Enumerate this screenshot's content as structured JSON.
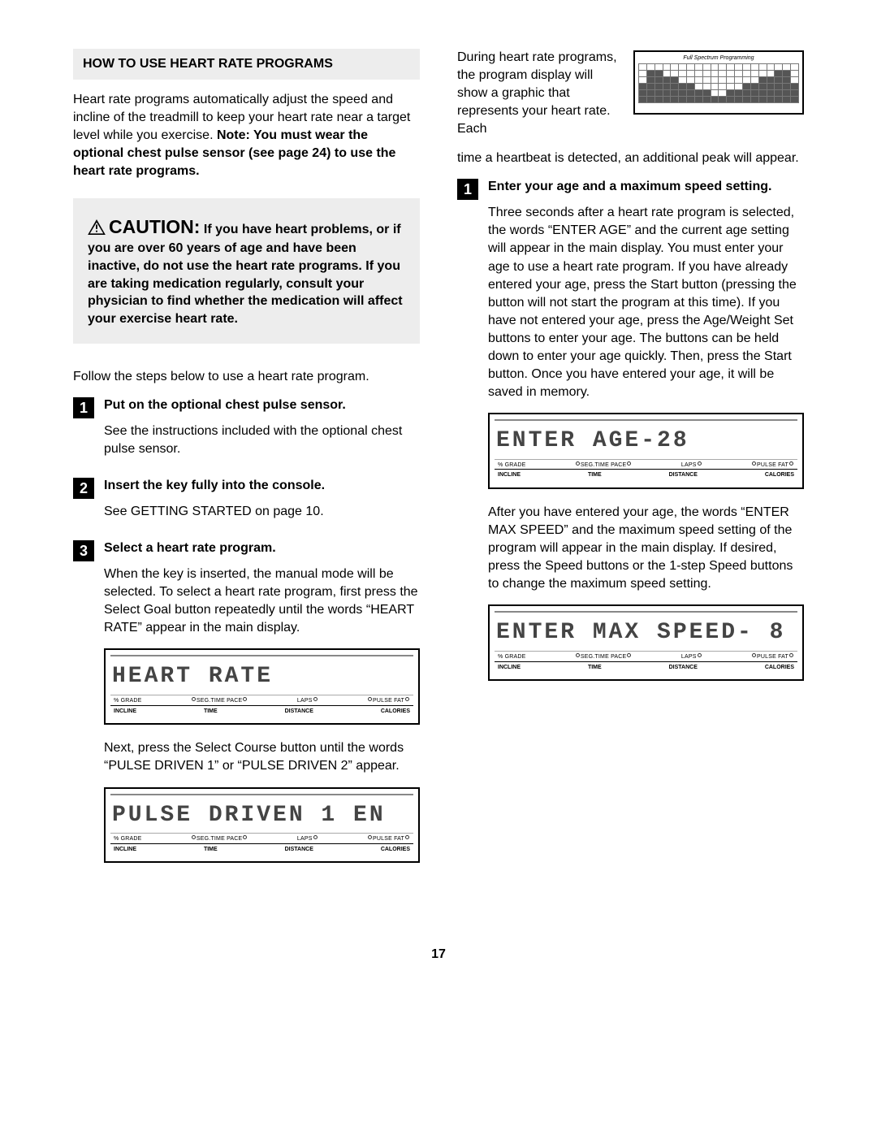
{
  "title": "HOW TO USE HEART RATE PROGRAMS",
  "intro": "Heart rate programs automatically adjust the speed and incline of the treadmill to keep your heart rate near a target level while you exercise. ",
  "intro_bold": "Note: You must wear the optional chest pulse sensor (see page 24) to use the heart rate programs.",
  "caution_label": "CAUTION:",
  "caution_body": " If you have heart problems, or if you are over 60 years of age and have been inactive, do not use the heart rate programs. If you are taking medication regularly, consult your physician to find whether the medication will affect your exercise heart rate.",
  "follow": "Follow the steps below to use a heart rate program.",
  "steps": {
    "s1": {
      "title": "Put on the optional chest pulse sensor.",
      "body": "See the instructions included with the optional chest pulse sensor."
    },
    "s2": {
      "title": "Insert the key fully into the console.",
      "body": "See GETTING STARTED on page 10."
    },
    "s3": {
      "title": "Select a heart rate program.",
      "body1": "When the key is inserted, the manual mode will be selected. To select a heart rate program, first press the Select Goal button repeatedly until the words “HEART RATE” appear in the main display.",
      "body2": "Next, press the Select Course button until the words “PULSE DRIVEN 1” or “PULSE DRIVEN 2” appear."
    }
  },
  "right": {
    "top_text": "During heart rate programs, the program display will show a graphic that represents your heart rate. Each",
    "top_cont": "time a heartbeat is detected, an additional peak will appear.",
    "spectrum_title": "Full Spectrum Programming",
    "s4": {
      "title": "Enter your age and a maximum speed setting.",
      "body1": "Three seconds after a heart rate program is selected, the words “ENTER AGE” and the current age setting will appear in the main display. You must enter your age to use a heart rate program. If you have already entered your age, press the Start button (pressing the button will not start the program at this time). If you have not entered your age, press the Age/Weight Set buttons to enter your age. The buttons can be held down to enter your age quickly. Then, press the Start button. Once you have entered your age, it will be saved in memory.",
      "body2": "After you have entered your age, the words “ENTER MAX SPEED” and the maximum speed setting of the program will appear in the main display. If desired, press the Speed buttons or the 1-step Speed buttons to change the maximum speed setting."
    }
  },
  "lcd": {
    "heart_rate": "HEART  RATE",
    "pulse_driven": "PULSE  DRIVEN  1 EN",
    "enter_age": "ENTER  AGE-28",
    "enter_max": "ENTER  MAX  SPEED-  8",
    "labels_top": [
      "% GRADE",
      "SEG.TIME PACE",
      "LAPS",
      "PULSE  FAT"
    ],
    "labels_bot": [
      "INCLINE",
      "TIME",
      "DISTANCE",
      "CALORIES"
    ]
  },
  "spectrum": {
    "rows": 6,
    "cols": 20,
    "fills": [
      [],
      [
        1,
        2,
        17,
        18
      ],
      [
        1,
        2,
        3,
        4,
        15,
        16,
        17,
        18
      ],
      [
        0,
        1,
        2,
        3,
        4,
        5,
        6,
        13,
        14,
        15,
        16,
        17,
        18,
        19
      ],
      [
        0,
        1,
        2,
        3,
        4,
        5,
        6,
        7,
        8,
        11,
        12,
        13,
        14,
        15,
        16,
        17,
        18,
        19
      ],
      [
        0,
        1,
        2,
        3,
        4,
        5,
        6,
        7,
        8,
        9,
        10,
        11,
        12,
        13,
        14,
        15,
        16,
        17,
        18,
        19
      ]
    ]
  },
  "page_number": "17"
}
